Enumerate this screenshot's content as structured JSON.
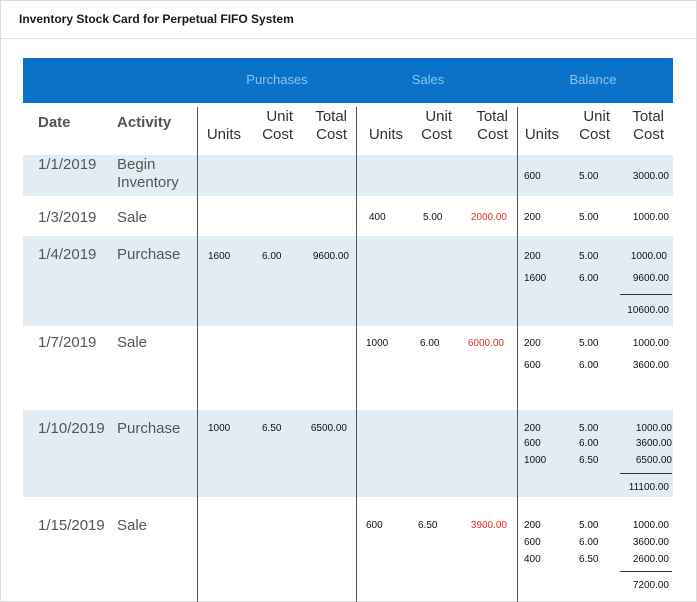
{
  "title": "Inventory Stock Card for Perpetual FIFO System",
  "groups": {
    "purchases": "Purchases",
    "sales": "Sales",
    "balance": "Balance"
  },
  "headers": {
    "date": "Date",
    "activity": "Activity",
    "units": "Units",
    "unit_cost_1": "Unit",
    "unit_cost_2": "Cost",
    "total_cost_1": "Total",
    "total_cost_2": "Cost"
  },
  "colors": {
    "banner": "#0a72c8",
    "band": "#e2edf3",
    "sales_total": "#e0302a"
  },
  "rows": [
    {
      "date": "1/1/2019",
      "activity_1": "Begin",
      "activity_2": "Inventory",
      "balance": [
        {
          "units": "600",
          "cost": "5.00",
          "total": "3000.00"
        }
      ]
    },
    {
      "date": "1/3/2019",
      "activity_1": "Sale",
      "sales": {
        "units": "400",
        "cost": "5.00",
        "total": "2000.00"
      },
      "balance": [
        {
          "units": "200",
          "cost": "5.00",
          "total": "1000.00"
        }
      ]
    },
    {
      "date": "1/4/2019",
      "activity_1": "Purchase",
      "purchases": {
        "units": "1600",
        "cost": "6.00",
        "total": "9600.00"
      },
      "balance": [
        {
          "units": "200",
          "cost": "5.00",
          "total": "1000.00"
        },
        {
          "units": "1600",
          "cost": "6.00",
          "total": "9600.00"
        }
      ],
      "balance_sum": "10600.00"
    },
    {
      "date": "1/7/2019",
      "activity_1": "Sale",
      "sales": {
        "units": "1000",
        "cost": "6.00",
        "total": "6000.00"
      },
      "balance": [
        {
          "units": "200",
          "cost": "5.00",
          "total": "1000.00"
        },
        {
          "units": "600",
          "cost": "6.00",
          "total": "3600.00"
        }
      ]
    },
    {
      "date": "1/10/2019",
      "activity_1": "Purchase",
      "purchases": {
        "units": "1000",
        "cost": "6.50",
        "total": "6500.00"
      },
      "balance": [
        {
          "units": "200",
          "cost": "5.00",
          "total": "1000.00"
        },
        {
          "units": "600",
          "cost": "6.00",
          "total": "3600.00"
        },
        {
          "units": "1000",
          "cost": "6.50",
          "total": "6500.00"
        }
      ],
      "balance_sum": "11100.00"
    },
    {
      "date": "1/15/2019",
      "activity_1": "Sale",
      "sales": {
        "units": "600",
        "cost": "6.50",
        "total": "3900.00"
      },
      "balance": [
        {
          "units": "200",
          "cost": "5.00",
          "total": "1000.00"
        },
        {
          "units": "600",
          "cost": "6.00",
          "total": "3600.00"
        },
        {
          "units": "400",
          "cost": "6.50",
          "total": "2600.00"
        }
      ],
      "balance_sum": "7200.00"
    }
  ]
}
